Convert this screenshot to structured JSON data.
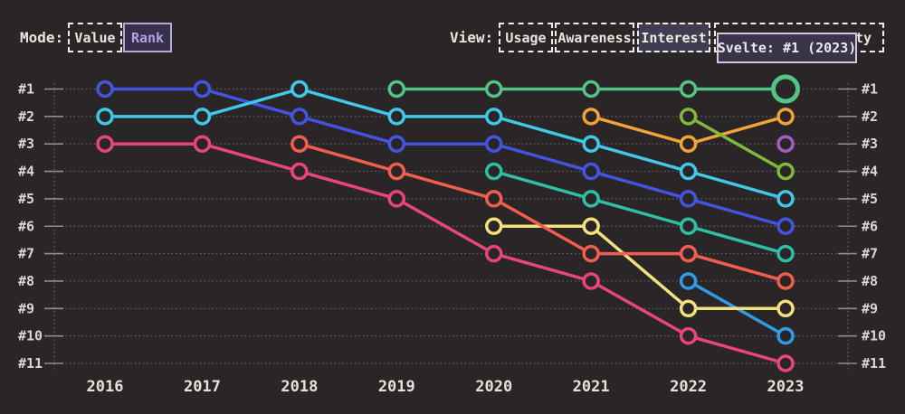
{
  "mode_control": {
    "label": "Mode:",
    "options": [
      {
        "label": "Value",
        "selected": false
      },
      {
        "label": "Rank",
        "selected": true
      }
    ]
  },
  "view_control": {
    "label": "View:",
    "options": [
      {
        "label": "Usage",
        "selected": false
      },
      {
        "label": "Awareness",
        "selected": false
      },
      {
        "label": "Interest",
        "selected": true
      },
      {
        "label": "ty",
        "selected": false,
        "partially_hidden_by_tooltip": true
      }
    ]
  },
  "tooltip": {
    "text": "Svelte: #1 (2023)"
  },
  "colors": {
    "background": "#2a2527",
    "text_cream": "#ece5dd",
    "axis_label": "#ddd6d0",
    "year_label": "#e8e1d9",
    "grid_dot": "#9a9296",
    "tick": "#a39b9e",
    "accent_lavender": "#b29fe8",
    "tooltip_bg": "#3a3449",
    "tooltip_border": "#d0c8dc"
  },
  "chart_data": {
    "type": "line",
    "subtype": "bump-rank-chart",
    "x": [
      2016,
      2017,
      2018,
      2019,
      2020,
      2021,
      2022,
      2023
    ],
    "x_labels": [
      "2016",
      "2017",
      "2018",
      "2019",
      "2020",
      "2021",
      "2022",
      "2023"
    ],
    "rank_labels": [
      "#1",
      "#2",
      "#3",
      "#4",
      "#5",
      "#6",
      "#7",
      "#8",
      "#9",
      "#10",
      "#11"
    ],
    "ylim": [
      1,
      11
    ],
    "y_axis_sides": [
      "left",
      "right"
    ],
    "grid": "dotted-horizontal",
    "legend": "none",
    "series": [
      {
        "name": "blue",
        "color": "#4355e0",
        "values": [
          1,
          1,
          2,
          3,
          3,
          4,
          5,
          6
        ]
      },
      {
        "name": "cyan",
        "color": "#41c7e8",
        "values": [
          2,
          2,
          1,
          2,
          2,
          3,
          4,
          5
        ]
      },
      {
        "name": "pink",
        "color": "#e8457d",
        "values": [
          3,
          3,
          4,
          5,
          7,
          8,
          10,
          11
        ]
      },
      {
        "name": "skyblue",
        "color": "#2f9ce8",
        "values": [
          null,
          null,
          null,
          null,
          null,
          null,
          8,
          10
        ]
      },
      {
        "name": "yellow",
        "color": "#f2e27d",
        "values": [
          null,
          null,
          null,
          null,
          6,
          6,
          9,
          9
        ]
      },
      {
        "name": "salmon",
        "color": "#f15e4f",
        "values": [
          null,
          null,
          3,
          4,
          5,
          7,
          7,
          8
        ]
      },
      {
        "name": "svelte",
        "color": "#53c483",
        "values": [
          null,
          null,
          null,
          1,
          1,
          1,
          1,
          1
        ]
      },
      {
        "name": "teal",
        "color": "#2fbfa4",
        "values": [
          null,
          null,
          null,
          null,
          4,
          5,
          6,
          7
        ]
      },
      {
        "name": "orange",
        "color": "#f0a336",
        "values": [
          null,
          null,
          null,
          null,
          null,
          2,
          3,
          2
        ]
      },
      {
        "name": "olive",
        "color": "#7fb93e",
        "values": [
          null,
          null,
          null,
          null,
          null,
          null,
          2,
          4
        ]
      },
      {
        "name": "purple",
        "color": "#a55cc2",
        "values": [
          null,
          null,
          null,
          null,
          null,
          null,
          null,
          3
        ]
      }
    ],
    "highlight": {
      "series": "svelte",
      "year": 2023,
      "rank": 1,
      "tooltip": "Svelte: #1 (2023)"
    }
  }
}
